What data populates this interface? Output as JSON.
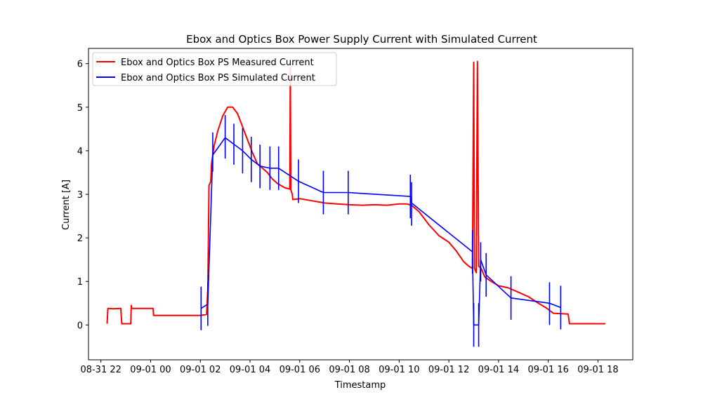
{
  "chart_data": {
    "type": "line",
    "title": "Ebox and Optics Box Power Supply Current with Simulated Current",
    "xlabel": "Timestamp",
    "ylabel": "Current [A]",
    "x_unit": "hours",
    "xlim": [
      21.5,
      43.4
    ],
    "ylim": [
      -0.8,
      6.35
    ],
    "grid": false,
    "legend_position": "upper-left",
    "x_ticks": [
      {
        "value": 22,
        "label": "08-31 22"
      },
      {
        "value": 24,
        "label": "09-01 00"
      },
      {
        "value": 26,
        "label": "09-01 02"
      },
      {
        "value": 28,
        "label": "09-01 04"
      },
      {
        "value": 30,
        "label": "09-01 06"
      },
      {
        "value": 32,
        "label": "09-01 08"
      },
      {
        "value": 34,
        "label": "09-01 10"
      },
      {
        "value": 36,
        "label": "09-01 12"
      },
      {
        "value": 38,
        "label": "09-01 14"
      },
      {
        "value": 40,
        "label": "09-01 16"
      },
      {
        "value": 42,
        "label": "09-01 18"
      }
    ],
    "y_ticks": [
      {
        "value": 0,
        "label": "0"
      },
      {
        "value": 1,
        "label": "1"
      },
      {
        "value": 2,
        "label": "2"
      },
      {
        "value": 3,
        "label": "3"
      },
      {
        "value": 4,
        "label": "4"
      },
      {
        "value": 5,
        "label": "5"
      },
      {
        "value": 6,
        "label": "6"
      }
    ],
    "series": [
      {
        "name": "Ebox and Optics Box PS Measured Current",
        "color": "#ff0000",
        "points": [
          [
            22.25,
            0.03
          ],
          [
            22.28,
            0.38
          ],
          [
            22.5,
            0.37
          ],
          [
            22.8,
            0.38
          ],
          [
            22.84,
            0.03
          ],
          [
            23.2,
            0.03
          ],
          [
            23.22,
            0.45
          ],
          [
            23.24,
            0.38
          ],
          [
            23.6,
            0.38
          ],
          [
            24.1,
            0.38
          ],
          [
            24.12,
            0.22
          ],
          [
            25,
            0.22
          ],
          [
            26,
            0.22
          ],
          [
            26.25,
            0.24
          ],
          [
            26.3,
            0.8
          ],
          [
            26.35,
            3.2
          ],
          [
            26.42,
            3.3
          ],
          [
            26.45,
            3.7
          ],
          [
            26.55,
            4.1
          ],
          [
            26.7,
            4.45
          ],
          [
            26.9,
            4.8
          ],
          [
            27.1,
            5
          ],
          [
            27.3,
            5
          ],
          [
            27.5,
            4.85
          ],
          [
            27.7,
            4.55
          ],
          [
            27.9,
            4.25
          ],
          [
            28.1,
            3.95
          ],
          [
            28.3,
            3.7
          ],
          [
            28.5,
            3.6
          ],
          [
            28.7,
            3.5
          ],
          [
            28.9,
            3.35
          ],
          [
            29.1,
            3.25
          ],
          [
            29.4,
            3.15
          ],
          [
            29.6,
            3.12
          ],
          [
            29.62,
            5.9
          ],
          [
            29.64,
            3.1
          ],
          [
            29.7,
            3
          ],
          [
            29.72,
            2.88
          ],
          [
            30,
            2.9
          ],
          [
            30.5,
            2.85
          ],
          [
            31,
            2.8
          ],
          [
            31.5,
            2.78
          ],
          [
            32,
            2.76
          ],
          [
            32.5,
            2.75
          ],
          [
            33,
            2.76
          ],
          [
            33.5,
            2.75
          ],
          [
            34,
            2.78
          ],
          [
            34.3,
            2.78
          ],
          [
            34.5,
            2.75
          ],
          [
            34.8,
            2.6
          ],
          [
            35.2,
            2.3
          ],
          [
            35.6,
            2.05
          ],
          [
            36,
            1.9
          ],
          [
            36.3,
            1.7
          ],
          [
            36.6,
            1.45
          ],
          [
            36.8,
            1.35
          ],
          [
            36.95,
            1.3
          ],
          [
            37,
            6.03
          ],
          [
            37.03,
            1.3
          ],
          [
            37.1,
            1.2
          ],
          [
            37.15,
            6.05
          ],
          [
            37.2,
            1.35
          ],
          [
            37.3,
            1.3
          ],
          [
            37.45,
            1.1
          ],
          [
            37.7,
            1
          ],
          [
            38,
            0.9
          ],
          [
            38.4,
            0.85
          ],
          [
            38.8,
            0.75
          ],
          [
            39.2,
            0.65
          ],
          [
            39.6,
            0.5
          ],
          [
            39.9,
            0.4
          ],
          [
            40.2,
            0.27
          ],
          [
            40.8,
            0.25
          ],
          [
            40.85,
            0.03
          ],
          [
            42.3,
            0.03
          ]
        ]
      },
      {
        "name": "Ebox and Optics Box PS Simulated Current",
        "color": "#0000ff",
        "points": [
          [
            26.03,
            0.38
          ],
          [
            26.3,
            0.48
          ],
          [
            26.5,
            3.9
          ],
          [
            27,
            4.3
          ],
          [
            27.35,
            4.15
          ],
          [
            27.7,
            4
          ],
          [
            28.05,
            3.8
          ],
          [
            28.4,
            3.65
          ],
          [
            28.8,
            3.6
          ],
          [
            29.15,
            3.6
          ],
          [
            29.95,
            3.3
          ],
          [
            30.95,
            3.04
          ],
          [
            31.95,
            3.04
          ],
          [
            34.45,
            2.95
          ],
          [
            34.5,
            2.8
          ],
          [
            36.95,
            1.68
          ],
          [
            37,
            0
          ],
          [
            37.2,
            0
          ],
          [
            37.28,
            1.5
          ],
          [
            37.5,
            1.15
          ],
          [
            38.5,
            0.62
          ],
          [
            40.05,
            0.5
          ],
          [
            40.5,
            0.4
          ]
        ],
        "error_bars": [
          {
            "x": 26.03,
            "low": -0.12,
            "high": 0.88
          },
          {
            "x": 26.3,
            "low": -0.02,
            "high": 0.98
          },
          {
            "x": 26.5,
            "low": 3.52,
            "high": 4.42
          },
          {
            "x": 27,
            "low": 3.82,
            "high": 4.82
          },
          {
            "x": 27.35,
            "low": 3.68,
            "high": 4.62
          },
          {
            "x": 27.7,
            "low": 3.48,
            "high": 4.52
          },
          {
            "x": 28.05,
            "low": 3.28,
            "high": 4.32
          },
          {
            "x": 28.4,
            "low": 3.14,
            "high": 4.14
          },
          {
            "x": 28.8,
            "low": 3.1,
            "high": 4.1
          },
          {
            "x": 29.15,
            "low": 3.1,
            "high": 4.1
          },
          {
            "x": 29.95,
            "low": 2.8,
            "high": 3.8
          },
          {
            "x": 30.95,
            "low": 2.54,
            "high": 3.54
          },
          {
            "x": 31.95,
            "low": 2.54,
            "high": 3.54
          },
          {
            "x": 34.45,
            "low": 2.45,
            "high": 3.45
          },
          {
            "x": 34.5,
            "low": 2.28,
            "high": 3.28
          },
          {
            "x": 36.95,
            "low": 1.18,
            "high": 2.18
          },
          {
            "x": 37,
            "low": -0.5,
            "high": 0.5
          },
          {
            "x": 37.2,
            "low": -0.5,
            "high": 0.5
          },
          {
            "x": 37.28,
            "low": 1.0,
            "high": 1.9
          },
          {
            "x": 37.5,
            "low": 0.65,
            "high": 1.65
          },
          {
            "x": 38.5,
            "low": 0.12,
            "high": 1.12
          },
          {
            "x": 40.05,
            "low": 0.0,
            "high": 0.98
          },
          {
            "x": 40.5,
            "low": -0.1,
            "high": 0.9
          }
        ]
      }
    ]
  }
}
